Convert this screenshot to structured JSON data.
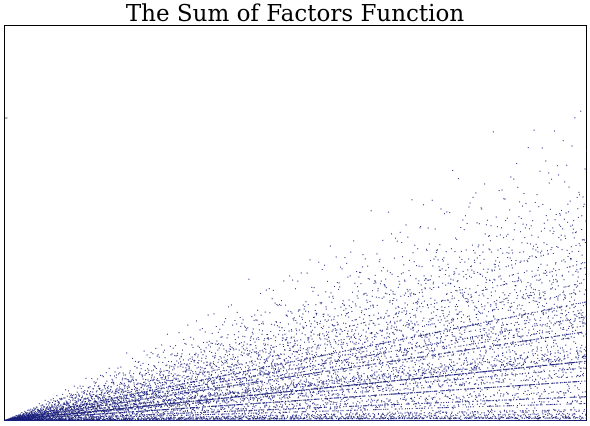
{
  "title": "The Sum of Factors Function",
  "chart_data": {
    "type": "scatter",
    "title": "The Sum of Factors Function",
    "xlabel": "",
    "ylabel": "",
    "x_range": [
      1,
      12000
    ],
    "y_range": [
      0,
      40000
    ],
    "y_tick_labels": [
      ""
    ],
    "x_tick_labels": [
      "",
      "",
      "",
      "",
      "",
      "",
      ""
    ],
    "grid": false,
    "marker_color": "#1a1f7a",
    "series": [
      {
        "function": "sum of proper divisors of n",
        "x_start": 1,
        "x_end": 12000,
        "x_step": 1
      }
    ]
  }
}
